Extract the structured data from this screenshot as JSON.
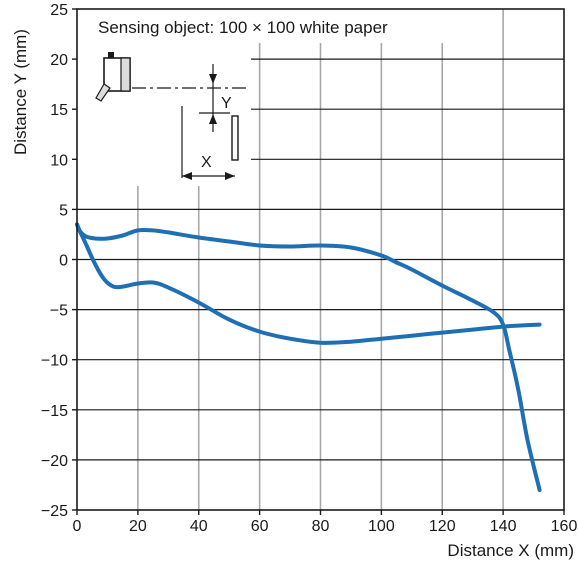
{
  "chart_data": {
    "type": "line",
    "xlabel": "Distance X (mm)",
    "ylabel": "Distance Y (mm)",
    "xlim": [
      0,
      160
    ],
    "ylim": [
      -25,
      25
    ],
    "x_ticks": [
      0,
      20,
      40,
      60,
      80,
      100,
      120,
      140,
      160
    ],
    "y_ticks": [
      25,
      20,
      15,
      10,
      5,
      0,
      -5,
      -10,
      -15,
      -20,
      -25
    ],
    "grid": true,
    "annotation": "Sensing object: 100 × 100 white paper",
    "inset_labels": {
      "x": "X",
      "y": "Y"
    },
    "colors": {
      "series": "#1f6fb5",
      "grid": "#a8a8a8",
      "axis": "#1a1a1a"
    },
    "series": [
      {
        "x": [
          0,
          1,
          3,
          6,
          10,
          15,
          20,
          25,
          30,
          40,
          50,
          60,
          70,
          80,
          90,
          100,
          105,
          110,
          120,
          130,
          137,
          140,
          142,
          145,
          148,
          152
        ],
        "values": [
          3.5,
          2.8,
          2.3,
          2.1,
          2.1,
          2.4,
          2.9,
          2.9,
          2.7,
          2.2,
          1.8,
          1.4,
          1.3,
          1.4,
          1.2,
          0.4,
          -0.3,
          -1.0,
          -2.6,
          -4.1,
          -5.3,
          -6.5,
          -9.0,
          -13.0,
          -18.0,
          -23.0
        ]
      },
      {
        "x": [
          0,
          1,
          3,
          6,
          9,
          12,
          15,
          20,
          25,
          30,
          40,
          50,
          60,
          70,
          80,
          90,
          100,
          110,
          120,
          130,
          140,
          145,
          152
        ],
        "values": [
          3.5,
          2.8,
          1.5,
          -0.5,
          -2.0,
          -2.7,
          -2.7,
          -2.4,
          -2.3,
          -2.8,
          -4.3,
          -6.0,
          -7.2,
          -7.9,
          -8.3,
          -8.2,
          -7.9,
          -7.6,
          -7.3,
          -7.0,
          -6.7,
          -6.6,
          -6.5
        ]
      }
    ]
  }
}
